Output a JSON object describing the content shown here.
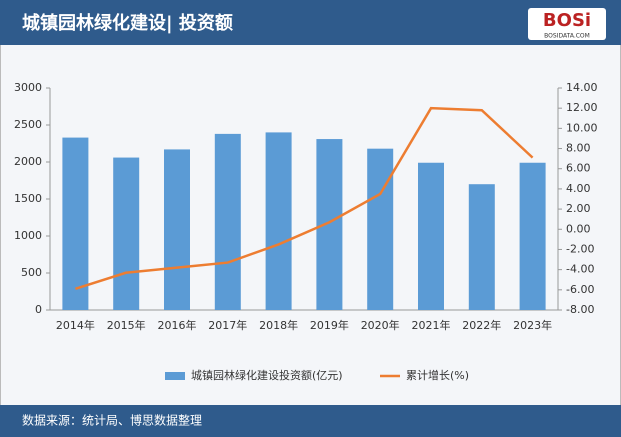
{
  "header": {
    "title": "城镇园林绿化建设| 投资额"
  },
  "logo": {
    "text": "BOSi",
    "subtext": "BOSIDATA.COM"
  },
  "chart_data": {
    "type": "combo",
    "categories": [
      "2014年",
      "2015年",
      "2016年",
      "2017年",
      "2018年",
      "2019年",
      "2020年",
      "2021年",
      "2022年",
      "2023年"
    ],
    "series": [
      {
        "name": "城镇园林绿化建设投资额(亿元)",
        "type": "bar",
        "color": "#5b9bd5",
        "values": [
          2330,
          2060,
          2170,
          2380,
          2400,
          2310,
          2180,
          1990,
          1700,
          1990
        ]
      },
      {
        "name": "累计增长(%)",
        "type": "line",
        "axis": "y2",
        "color": "#ed7d31",
        "values": [
          -5.9,
          -4.3,
          -3.8,
          -3.3,
          -1.5,
          0.7,
          3.5,
          12.0,
          11.8,
          7.1
        ]
      }
    ],
    "ylim": [
      0,
      3000
    ],
    "yticks": [
      0,
      500,
      1000,
      1500,
      2000,
      2500,
      3000
    ],
    "y2lim": [
      -8,
      14
    ],
    "y2ticks": [
      {
        "value": -8,
        "label": "-8.00"
      },
      {
        "value": -6,
        "label": "-6.00"
      },
      {
        "value": -4,
        "label": "-4.00"
      },
      {
        "value": -2,
        "label": "-2.00"
      },
      {
        "value": 0,
        "label": "0.00"
      },
      {
        "value": 2,
        "label": "2.00"
      },
      {
        "value": 4,
        "label": "4.00"
      },
      {
        "value": 6,
        "label": "6.00"
      },
      {
        "value": 8,
        "label": "8.00"
      },
      {
        "value": 10,
        "label": "10.00"
      },
      {
        "value": 12,
        "label": "12.00"
      },
      {
        "value": 14,
        "label": "14.00"
      }
    ],
    "legend": "bottom"
  },
  "footer": {
    "source": "数据来源：统计局、博思数据整理"
  }
}
